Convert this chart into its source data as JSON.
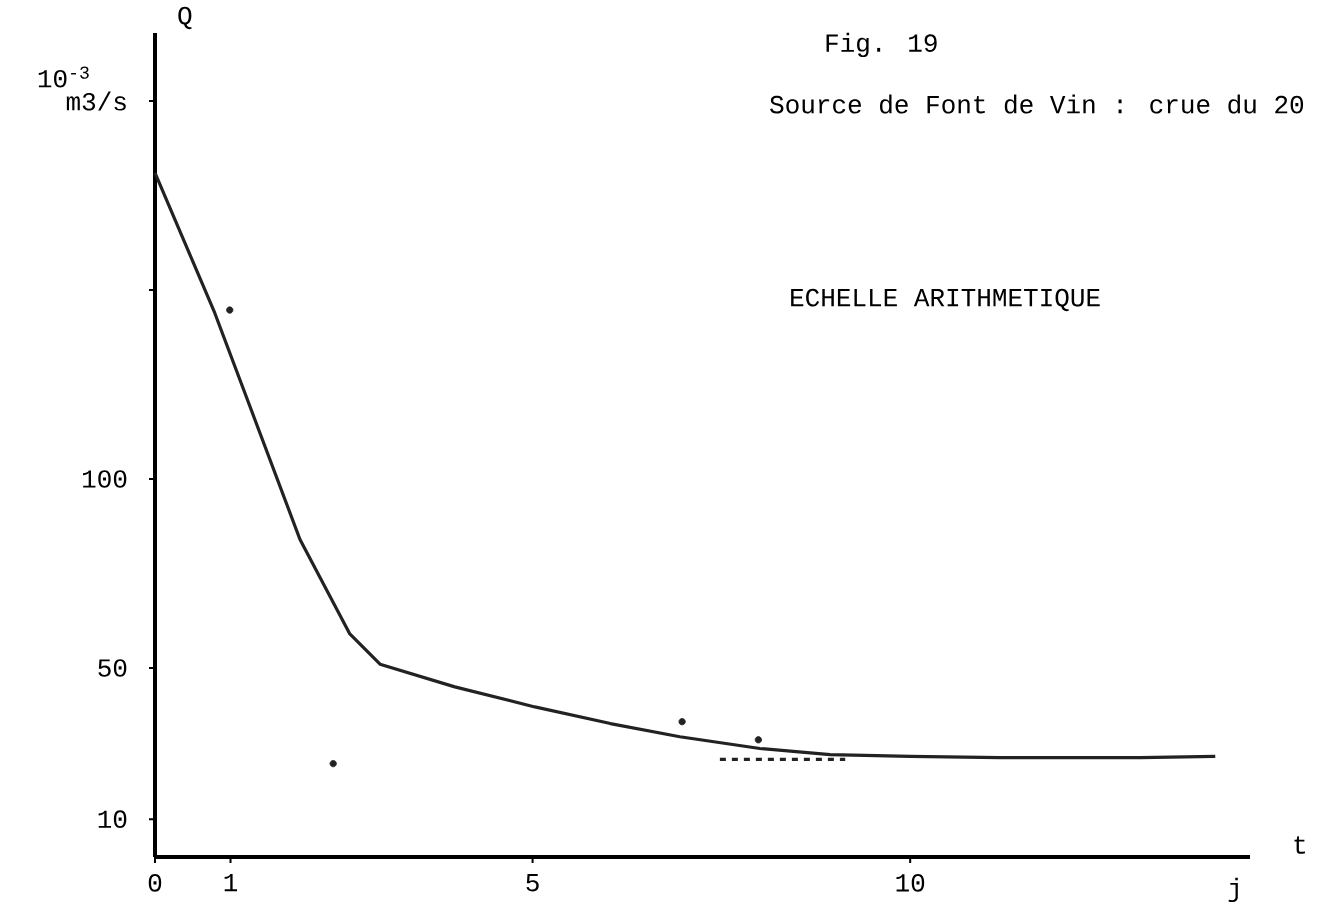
{
  "chart_data": {
    "type": "line",
    "title": "Fig. 19",
    "subtitle": "Source de Font de Vin : crue du 20",
    "xlabel": "t",
    "ylabel": "Q",
    "annotations": [
      "ECHELLE ARITHMETIQUE",
      "10$^{-3}$",
      "j"
    ],
    "xlim": [
      0,
      14.5
    ],
    "ylim": [
      0,
      218
    ],
    "xticks": [
      0,
      1,
      5,
      10
    ],
    "yticks": [
      10,
      50,
      100,
      {
        "value": 150,
        "label": null
      },
      {
        "value": 200,
        "label": "m3/s"
      }
    ],
    "grid": false,
    "series": [
      {
        "color": "#222222",
        "line_style": "solid",
        "x": [
          0,
          0.79,
          1.92,
          2.58,
          2.98,
          3.97,
          5.03,
          6.03,
          6.95,
          8.01,
          8.94,
          10,
          11.19,
          12.12,
          13.05,
          14.04
        ],
        "values": [
          181,
          144,
          84,
          59,
          51,
          45,
          39.7,
          35.3,
          31.8,
          28.7,
          27.1,
          26.6,
          26.3,
          26.3,
          26.3,
          26.6
        ]
      },
      {
        "type": "line",
        "color": "#222222",
        "line_style": "dashed",
        "x": [
          7.48,
          9.14
        ],
        "values": [
          25.8,
          25.8
        ]
      },
      {
        "type": "scatter",
        "color": "#222222",
        "marker": "circle",
        "x": [
          0.99,
          2.36,
          6.98,
          7.99
        ],
        "values": [
          144.7,
          24.7,
          35.8,
          31
        ]
      }
    ]
  }
}
